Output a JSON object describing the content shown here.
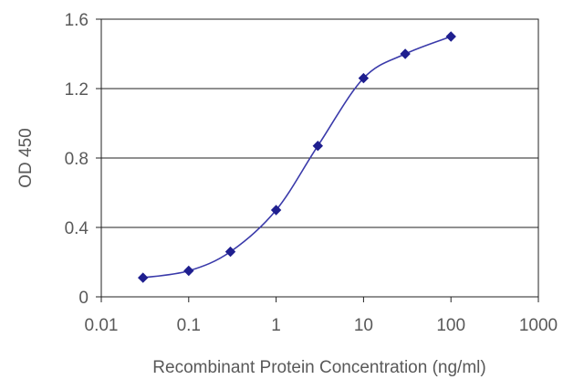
{
  "chart_data": {
    "type": "line",
    "title": "",
    "xlabel": "Recombinant Protein Concentration (ng/ml)",
    "ylabel": "OD 450",
    "x_scale": "log",
    "xlim": [
      0.01,
      1000
    ],
    "ylim": [
      0,
      1.6
    ],
    "grid": "horizontal",
    "legend": "none",
    "x_ticks": [
      "0.01",
      "0.1",
      "1",
      "10",
      "100",
      "1000"
    ],
    "y_ticks": [
      "0",
      "0.4",
      "0.8",
      "1.2",
      "1.6"
    ],
    "series": [
      {
        "color": "#1f1f8f",
        "x": [
          0.03,
          0.1,
          0.3,
          1,
          3,
          10,
          30,
          100
        ],
        "y": [
          0.11,
          0.15,
          0.26,
          0.5,
          0.87,
          1.26,
          1.4,
          1.5
        ]
      }
    ]
  }
}
